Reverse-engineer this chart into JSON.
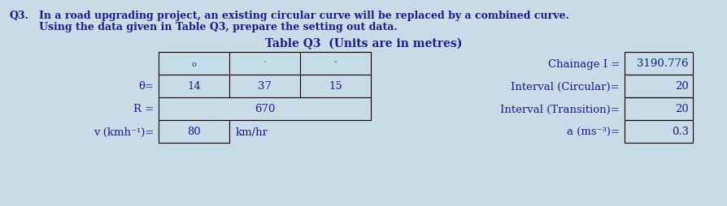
{
  "bg_color": "#c8dce8",
  "text_color": "#1a1a8c",
  "title_line1": "In a road upgrading project, an existing circular curve will be replaced by a combined curve.",
  "title_line2": "Using the data given in Table Q3, prepare the setting out data.",
  "q_label": "Q3.",
  "table_title": "Table Q3  (Units are in metres)",
  "col_headers": [
    "o",
    "′",
    "″"
  ],
  "theta_values": [
    "14",
    "37",
    "15"
  ],
  "R_value": "670",
  "v_value": "80",
  "v_unit": "km/hr",
  "right_labels": [
    "Chainage I =",
    "Interval (Circular)=",
    "Interval (Transition)=",
    "a (ms⁻³)="
  ],
  "right_values": [
    "3190.776",
    "20",
    "20",
    "0.3"
  ],
  "font_family": "DejaVu Serif",
  "lw": 0.8
}
